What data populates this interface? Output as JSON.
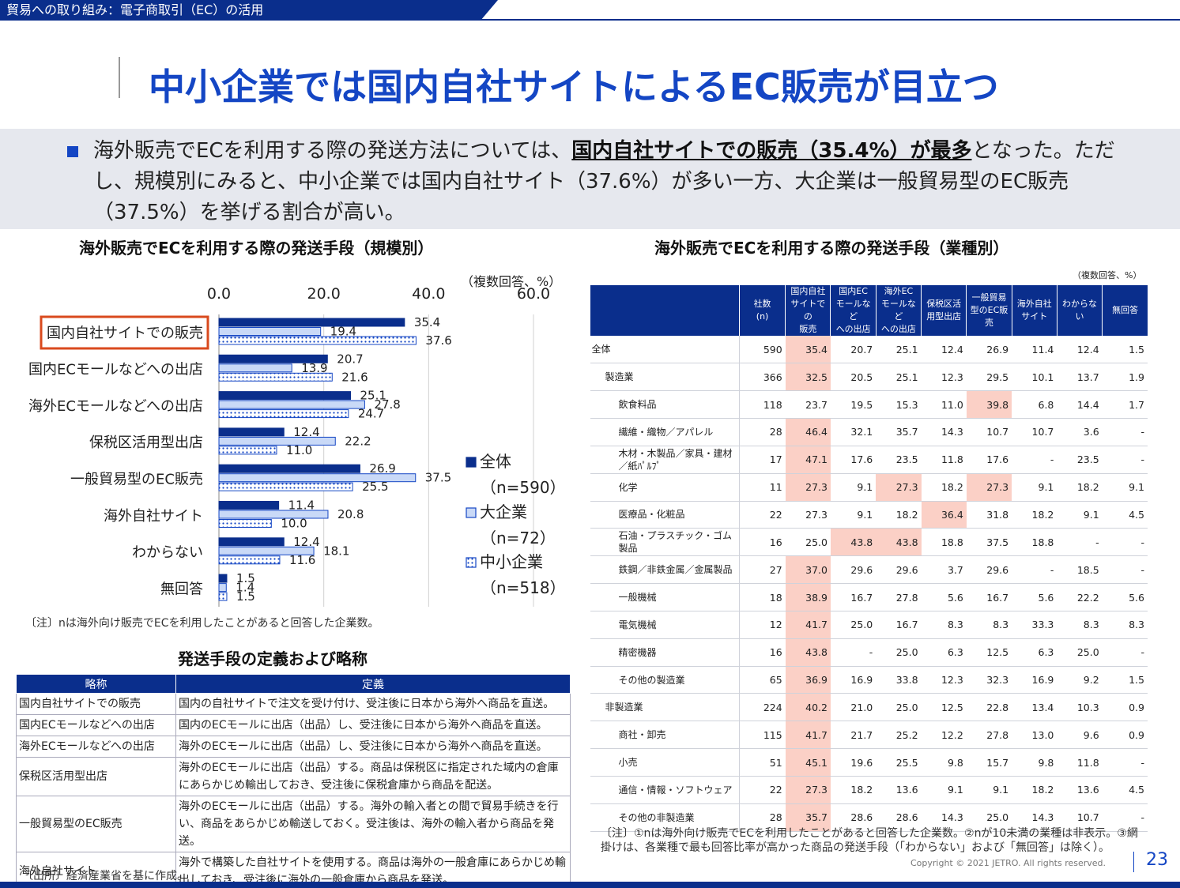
{
  "header": {
    "tab_label": "貿易への取り組み：電子商取引（EC）の活用",
    "title": "中小企業では国内自社サイトによるEC販売が目立つ"
  },
  "summary": {
    "part1": "海外販売でECを利用する際の発送方法については、",
    "bold": "国内自社サイトでの販売（35.4%）が最多",
    "part2": "となった。ただし、規模別にみると、中小企業では国内自社サイト（37.6%）が多い一方、大企業は一般貿易型のEC販売（37.5%）を挙げる割合が高い。"
  },
  "colors": {
    "navy": "#0a2e8c",
    "light_blue": "#c9d9f7",
    "highlight": "#fbd0c6",
    "outline_red": "#d94a1e"
  },
  "chart_data": {
    "type": "bar",
    "orientation": "horizontal",
    "title": "海外販売でECを利用する際の発送手段（規模別）",
    "unit_note": "（複数回答、%）",
    "categories": [
      "国内自社サイトでの販売",
      "国内ECモールなどへの出店",
      "海外ECモールなどへの出店",
      "保税区活用型出店",
      "一般貿易型のEC販売",
      "海外自社サイト",
      "わからない",
      "無回答"
    ],
    "highlighted_category": "国内自社サイトでの販売",
    "series": [
      {
        "name": "全体",
        "n": "（n=590）",
        "values": [
          35.4,
          20.7,
          25.1,
          12.4,
          26.9,
          11.4,
          12.4,
          1.5
        ]
      },
      {
        "name": "大企業",
        "n": "（n=72）",
        "values": [
          19.4,
          13.9,
          27.8,
          22.2,
          37.5,
          20.8,
          18.1,
          1.4
        ]
      },
      {
        "name": "中小企業",
        "n": "（n=518）",
        "values": [
          37.6,
          21.6,
          24.7,
          11.0,
          25.5,
          10.0,
          11.6,
          1.5
        ]
      }
    ],
    "x_ticks": [
      "0.0",
      "20.0",
      "40.0",
      "60.0"
    ],
    "xlim": [
      0,
      60
    ],
    "legend_position": "right",
    "note": "〔注〕nは海外向け販売でECを利用したことがあると回答した企業数。"
  },
  "definitions": {
    "title": "発送手段の定義および略称",
    "headers": [
      "略称",
      "定義"
    ],
    "rows": [
      {
        "abbr": "国内自社サイトでの販売",
        "def": "国内の自社サイトで注文を受け付け、受注後に日本から海外へ商品を直送。"
      },
      {
        "abbr": "国内ECモールなどへの出店",
        "def": "国内のECモールに出店（出品）し、受注後に日本から海外へ商品を直送。"
      },
      {
        "abbr": "海外ECモールなどへの出店",
        "def": "海外のECモールに出店（出品）し、受注後に日本から海外へ商品を直送。"
      },
      {
        "abbr": "保税区活用型出店",
        "def": "海外のECモールに出店（出品）する。商品は保税区に指定された域内の倉庫にあらかじめ輸出しておき、受注後に保税倉庫から商品を配送。"
      },
      {
        "abbr": "一般貿易型のEC販売",
        "def": "海外のECモールに出店（出品）する。海外の輸入者との間で貿易手続きを行い、商品をあらかじめ輸送しておく。受注後は、海外の輸入者から商品を発送。"
      },
      {
        "abbr": "海外自社サイト",
        "def": "海外で構築した自社サイトを使用する。商品は海外の一般倉庫にあらかじめ輸出しておき、受注後に海外の一般倉庫から商品を発送。"
      }
    ],
    "source": "〔出所〕経済産業省を基に作成。"
  },
  "industry_table": {
    "title": "海外販売でECを利用する際の発送手段（業種別）",
    "unit_note": "（複数回答、%）",
    "headers": [
      "社数\n(n)",
      "国内自社\nサイトでの\n販売",
      "国内EC\nモールなど\nへの出店",
      "海外EC\nモールなど\nへの出店",
      "保税区活\n用型出店",
      "一般貿易\n型のEC販\n売",
      "海外自社\nサイト",
      "わからない",
      "無回答"
    ],
    "rows": [
      {
        "label": "全体",
        "level": 0,
        "n": "590",
        "values": [
          "35.4",
          "20.7",
          "25.1",
          "12.4",
          "26.9",
          "11.4",
          "12.4",
          "1.5"
        ],
        "hl": [
          0
        ]
      },
      {
        "label": "製造業",
        "level": 1,
        "n": "366",
        "values": [
          "32.5",
          "20.5",
          "25.1",
          "12.3",
          "29.5",
          "10.1",
          "13.7",
          "1.9"
        ],
        "hl": [
          0
        ]
      },
      {
        "label": "飲食料品",
        "level": 2,
        "n": "118",
        "values": [
          "23.7",
          "19.5",
          "15.3",
          "11.0",
          "39.8",
          "6.8",
          "14.4",
          "1.7"
        ],
        "hl": [
          4
        ]
      },
      {
        "label": "繊維・織物／アパレル",
        "level": 2,
        "n": "28",
        "values": [
          "46.4",
          "32.1",
          "35.7",
          "14.3",
          "10.7",
          "10.7",
          "3.6",
          "-"
        ],
        "hl": [
          0
        ]
      },
      {
        "label": "木材・木製品／家具・建材／紙ﾊﾟﾙﾌﾟ",
        "level": 2,
        "n": "17",
        "values": [
          "47.1",
          "17.6",
          "23.5",
          "11.8",
          "17.6",
          "-",
          "23.5",
          "-"
        ],
        "hl": [
          0
        ]
      },
      {
        "label": "化学",
        "level": 2,
        "n": "11",
        "values": [
          "27.3",
          "9.1",
          "27.3",
          "18.2",
          "27.3",
          "9.1",
          "18.2",
          "9.1"
        ],
        "hl": [
          0,
          2,
          4
        ]
      },
      {
        "label": "医療品・化粧品",
        "level": 2,
        "n": "22",
        "values": [
          "27.3",
          "9.1",
          "18.2",
          "36.4",
          "31.8",
          "18.2",
          "9.1",
          "4.5"
        ],
        "hl": [
          3
        ]
      },
      {
        "label": "石油・プラスチック・ゴム製品",
        "level": 2,
        "n": "16",
        "values": [
          "25.0",
          "43.8",
          "43.8",
          "18.8",
          "37.5",
          "18.8",
          "-",
          "-"
        ],
        "hl": [
          1,
          2
        ]
      },
      {
        "label": "鉄鋼／非鉄金属／金属製品",
        "level": 2,
        "n": "27",
        "values": [
          "37.0",
          "29.6",
          "29.6",
          "3.7",
          "29.6",
          "-",
          "18.5",
          "-"
        ],
        "hl": [
          0
        ]
      },
      {
        "label": "一般機械",
        "level": 2,
        "n": "18",
        "values": [
          "38.9",
          "16.7",
          "27.8",
          "5.6",
          "16.7",
          "5.6",
          "22.2",
          "5.6"
        ],
        "hl": [
          0
        ]
      },
      {
        "label": "電気機械",
        "level": 2,
        "n": "12",
        "values": [
          "41.7",
          "25.0",
          "16.7",
          "8.3",
          "8.3",
          "33.3",
          "8.3",
          "8.3"
        ],
        "hl": [
          0
        ]
      },
      {
        "label": "精密機器",
        "level": 2,
        "n": "16",
        "values": [
          "43.8",
          "-",
          "25.0",
          "6.3",
          "12.5",
          "6.3",
          "25.0",
          "-"
        ],
        "hl": [
          0
        ]
      },
      {
        "label": "その他の製造業",
        "level": 2,
        "n": "65",
        "values": [
          "36.9",
          "16.9",
          "33.8",
          "12.3",
          "32.3",
          "16.9",
          "9.2",
          "1.5"
        ],
        "hl": [
          0
        ]
      },
      {
        "label": "非製造業",
        "level": 1,
        "n": "224",
        "values": [
          "40.2",
          "21.0",
          "25.0",
          "12.5",
          "22.8",
          "13.4",
          "10.3",
          "0.9"
        ],
        "hl": [
          0
        ]
      },
      {
        "label": "商社・卸売",
        "level": 2,
        "n": "115",
        "values": [
          "41.7",
          "21.7",
          "25.2",
          "12.2",
          "27.8",
          "13.0",
          "9.6",
          "0.9"
        ],
        "hl": [
          0
        ]
      },
      {
        "label": "小売",
        "level": 2,
        "n": "51",
        "values": [
          "45.1",
          "19.6",
          "25.5",
          "9.8",
          "15.7",
          "9.8",
          "11.8",
          "-"
        ],
        "hl": [
          0
        ]
      },
      {
        "label": "通信・情報・ソフトウェア",
        "level": 2,
        "n": "22",
        "values": [
          "27.3",
          "18.2",
          "13.6",
          "9.1",
          "9.1",
          "18.2",
          "13.6",
          "4.5"
        ],
        "hl": [
          0
        ]
      },
      {
        "label": "その他の非製造業",
        "level": 2,
        "n": "28",
        "values": [
          "35.7",
          "28.6",
          "28.6",
          "14.3",
          "25.0",
          "14.3",
          "10.7",
          "-"
        ],
        "hl": [
          0
        ]
      }
    ],
    "note": "〔注〕①nは海外向け販売でECを利用したことがあると回答した企業数。②nが10未満の業種は非表示。③網掛けは、各業種で最も回答比率が高かった商品の発送手段（「わからない」および「無回答」は除く）。"
  },
  "footer": {
    "copyright": "Copyright © 2021 JETRO. All rights reserved.",
    "page_number": "23"
  }
}
